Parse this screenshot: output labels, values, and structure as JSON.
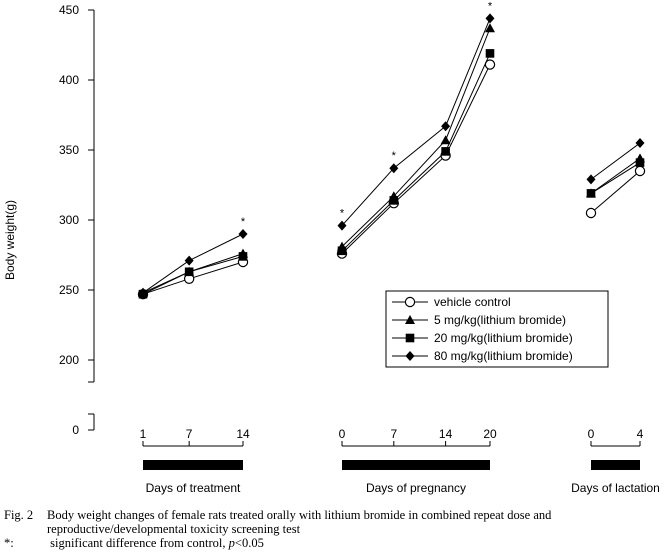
{
  "chart_data": {
    "type": "line",
    "ylabel": "Body weight(g)",
    "ylim": [
      200,
      450
    ],
    "yticks": [
      200,
      250,
      300,
      350,
      400,
      450
    ],
    "y_break_tick": 0,
    "panels": [
      {
        "xlabel": "Days of treatment",
        "x": [
          1,
          7,
          14
        ],
        "tick_labels": [
          "1",
          "7",
          "14"
        ],
        "series": [
          {
            "name": "vehicle control",
            "marker": "circle-open",
            "values": [
              247,
              258,
              270
            ]
          },
          {
            "name": "5 mg/kg(lithium bromide)",
            "marker": "triangle",
            "values": [
              248,
              263,
              276
            ]
          },
          {
            "name": "20 mg/kg(lithium bromide)",
            "marker": "square",
            "values": [
              247,
              263,
              274
            ]
          },
          {
            "name": "80 mg/kg(lithium bromide)",
            "marker": "diamond",
            "values": [
              248,
              271,
              290
            ]
          }
        ],
        "significant_x": [
          14
        ]
      },
      {
        "xlabel": "Days of pregnancy",
        "x": [
          0,
          7,
          14,
          20
        ],
        "tick_labels": [
          "0",
          "7",
          "14",
          "20"
        ],
        "series": [
          {
            "name": "vehicle control",
            "marker": "circle-open",
            "values": [
              276,
              312,
              346,
              411
            ]
          },
          {
            "name": "5 mg/kg(lithium bromide)",
            "marker": "triangle",
            "values": [
              281,
              317,
              357,
              437
            ]
          },
          {
            "name": "20 mg/kg(lithium bromide)",
            "marker": "square",
            "values": [
              278,
              314,
              349,
              419
            ]
          },
          {
            "name": "80 mg/kg(lithium bromide)",
            "marker": "diamond",
            "values": [
              296,
              337,
              367,
              444
            ]
          }
        ],
        "significant_x": [
          0,
          7,
          20
        ]
      },
      {
        "xlabel": "Days of lactation",
        "x": [
          0,
          4
        ],
        "tick_labels": [
          "0",
          "4"
        ],
        "series": [
          {
            "name": "vehicle control",
            "marker": "circle-open",
            "values": [
              305,
              335
            ]
          },
          {
            "name": "5 mg/kg(lithium bromide)",
            "marker": "triangle",
            "values": [
              319,
              344
            ]
          },
          {
            "name": "20 mg/kg(lithium bromide)",
            "marker": "square",
            "values": [
              319,
              341
            ]
          },
          {
            "name": "80 mg/kg(lithium bromide)",
            "marker": "diamond",
            "values": [
              329,
              355
            ]
          }
        ],
        "significant_x": []
      }
    ],
    "legend": {
      "placement": "lower-right",
      "entries": [
        {
          "label": "vehicle control",
          "marker": "circle-open"
        },
        {
          "label": "  5 mg/kg(lithium bromide)",
          "marker": "triangle"
        },
        {
          "label": "20 mg/kg(lithium bromide)",
          "marker": "square"
        },
        {
          "label": "80 mg/kg(lithium bromide)",
          "marker": "diamond"
        }
      ]
    },
    "significance_marker": "*"
  },
  "caption": {
    "label": "Fig. 2",
    "line1": "Body weight changes of female rats treated orally with lithium bromide in combined repeat dose and",
    "line2": "reproductive/developmental toxicity screening test",
    "star": "*:",
    "note_prefix": " significant difference from control, ",
    "note_p": "p",
    "note_suffix": "<0.05"
  }
}
